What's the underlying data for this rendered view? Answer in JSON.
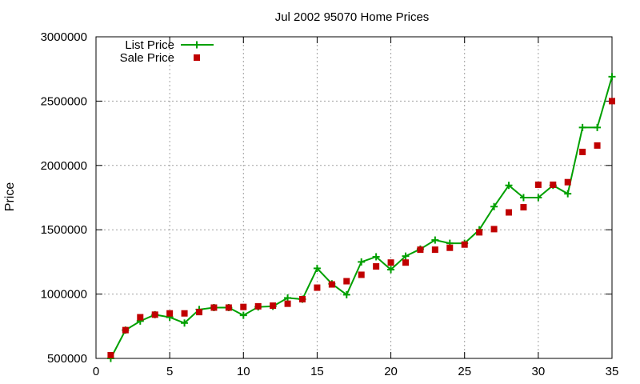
{
  "chart_data": {
    "type": "line",
    "title": "Jul 2002 95070 Home Prices",
    "xlabel": "",
    "ylabel": "Price",
    "xlim": [
      0,
      35
    ],
    "ylim": [
      500000,
      3000000
    ],
    "x_ticks": [
      0,
      5,
      10,
      15,
      20,
      25,
      30,
      35
    ],
    "y_ticks": [
      500000,
      1000000,
      1500000,
      2000000,
      2500000,
      3000000
    ],
    "grid": true,
    "legend_position": "top-left",
    "x": [
      1,
      2,
      3,
      4,
      5,
      6,
      7,
      8,
      9,
      10,
      11,
      12,
      13,
      14,
      15,
      16,
      17,
      18,
      19,
      20,
      21,
      22,
      23,
      24,
      25,
      26,
      27,
      28,
      29,
      30,
      31,
      32,
      33,
      34,
      35
    ],
    "series": [
      {
        "name": "List Price",
        "style": "line-with-plus-markers",
        "color": "#00a000",
        "values": [
          500000,
          720000,
          790000,
          840000,
          820000,
          775000,
          880000,
          895000,
          895000,
          835000,
          900000,
          905000,
          970000,
          960000,
          1200000,
          1080000,
          995000,
          1250000,
          1290000,
          1190000,
          1295000,
          1350000,
          1420000,
          1395000,
          1395000,
          1500000,
          1680000,
          1845000,
          1750000,
          1750000,
          1845000,
          1780000,
          2295000,
          2295000,
          2690000
        ]
      },
      {
        "name": "Sale Price",
        "style": "square-markers",
        "color": "#c00000",
        "values": [
          525000,
          720000,
          820000,
          840000,
          850000,
          850000,
          860000,
          895000,
          895000,
          900000,
          905000,
          910000,
          925000,
          960000,
          1050000,
          1075000,
          1100000,
          1150000,
          1215000,
          1245000,
          1245000,
          1345000,
          1345000,
          1360000,
          1385000,
          1480000,
          1505000,
          1635000,
          1675000,
          1850000,
          1850000,
          1870000,
          2105000,
          2155000,
          2500000
        ]
      }
    ]
  }
}
